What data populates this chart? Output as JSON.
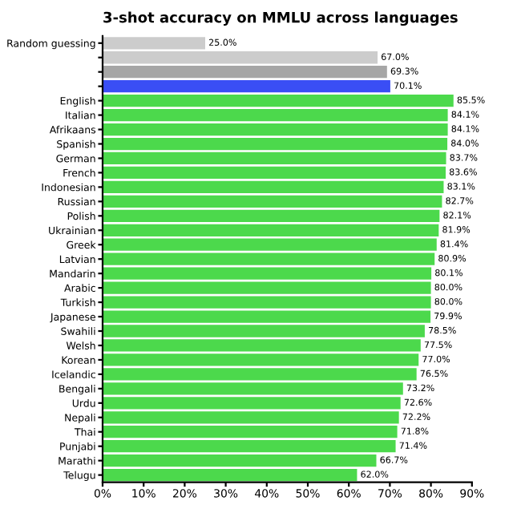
{
  "chart_data": {
    "type": "bar",
    "orientation": "horizontal",
    "title": "3-shot accuracy on MMLU across languages",
    "categories": [
      "Random guessing",
      null,
      null,
      null,
      "English",
      "Italian",
      "Afrikaans",
      "Spanish",
      "German",
      "French",
      "Indonesian",
      "Russian",
      "Polish",
      "Ukrainian",
      "Greek",
      "Latvian",
      "Mandarin",
      "Arabic",
      "Turkish",
      "Japanese",
      "Swahili",
      "Welsh",
      "Korean",
      "Icelandic",
      "Bengali",
      "Urdu",
      "Nepali",
      "Thai",
      "Punjabi",
      "Marathi",
      "Telugu"
    ],
    "values": [
      25.0,
      67.0,
      69.3,
      70.1,
      85.5,
      84.1,
      84.1,
      84.0,
      83.7,
      83.6,
      83.1,
      82.7,
      82.1,
      81.9,
      81.4,
      80.9,
      80.1,
      80.0,
      80.0,
      79.9,
      78.5,
      77.5,
      77.0,
      76.5,
      73.2,
      72.6,
      72.2,
      71.8,
      71.4,
      66.7,
      62.0
    ],
    "value_labels": [
      "25.0%",
      "67.0%",
      "69.3%",
      "70.1%",
      "85.5%",
      "84.1%",
      "84.1%",
      "84.0%",
      "83.7%",
      "83.6%",
      "83.1%",
      "82.7%",
      "82.1%",
      "81.9%",
      "81.4%",
      "80.9%",
      "80.1%",
      "80.0%",
      "80.0%",
      "79.9%",
      "78.5%",
      "77.5%",
      "77.0%",
      "76.5%",
      "73.2%",
      "72.6%",
      "72.2%",
      "71.8%",
      "71.4%",
      "66.7%",
      "62.0%"
    ],
    "colors": [
      "#cccccc",
      "#cccccc",
      "#a6a6a6",
      "#3a4ef5",
      "#4cd94c",
      "#4cd94c",
      "#4cd94c",
      "#4cd94c",
      "#4cd94c",
      "#4cd94c",
      "#4cd94c",
      "#4cd94c",
      "#4cd94c",
      "#4cd94c",
      "#4cd94c",
      "#4cd94c",
      "#4cd94c",
      "#4cd94c",
      "#4cd94c",
      "#4cd94c",
      "#4cd94c",
      "#4cd94c",
      "#4cd94c",
      "#4cd94c",
      "#4cd94c",
      "#4cd94c",
      "#4cd94c",
      "#4cd94c",
      "#4cd94c",
      "#4cd94c",
      "#4cd94c"
    ],
    "xlim": [
      0,
      90
    ],
    "xticks": [
      {
        "value": 0,
        "label": "0%"
      },
      {
        "value": 10,
        "label": "10%"
      },
      {
        "value": 20,
        "label": "20%"
      },
      {
        "value": 30,
        "label": "30%"
      },
      {
        "value": 40,
        "label": "40%"
      },
      {
        "value": 50,
        "label": "50%"
      },
      {
        "value": 60,
        "label": "60%"
      },
      {
        "value": 70,
        "label": "70%"
      },
      {
        "value": 80,
        "label": "80%"
      },
      {
        "value": 90,
        "label": "90%"
      }
    ],
    "grid": false,
    "legend": false
  }
}
